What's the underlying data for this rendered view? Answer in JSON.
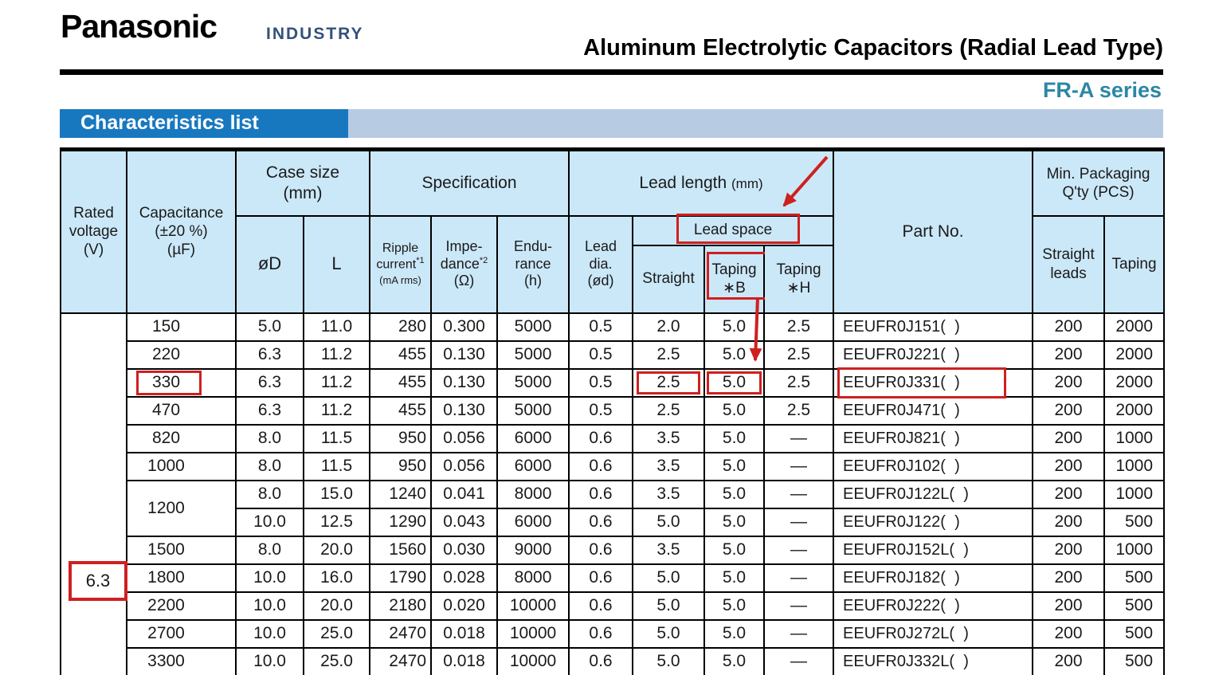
{
  "brand": {
    "logo": "Panasonic",
    "sub_brand": "INDUSTRY"
  },
  "title": "Aluminum Electrolytic Capacitors (Radial Lead Type)",
  "series": "FR-A series",
  "section_title": "Characteristics list",
  "colors": {
    "annotation_red": "#cf2020",
    "section_bar_blue": "#1878bf",
    "section_band_blue": "#b7cbe3",
    "table_header_blue": "#cbe8f8",
    "industry_navy": "#34517c",
    "series_teal": "#2c87a5"
  },
  "table": {
    "groups": {
      "rated_voltage": "Rated\nvoltage\n(V)",
      "capacitance": "Capacitance\n(±20 %)\n(µF)",
      "case_size": "Case size\n(mm)",
      "specification": "Specification",
      "lead_length_main": "Lead length ",
      "lead_length_unit": "(mm)",
      "part_no": "Part No.",
      "min_packaging": "Min. Packaging\nQ'ty (PCS)"
    },
    "sub_headers": {
      "dD": "øD",
      "L": "L",
      "ripple_l1": "Ripple\ncurrent",
      "ripple_sup": "*1",
      "ripple_l2": "\n(mA rms)",
      "impedance_l1": "Impe-\ndance",
      "impedance_sup": "*2",
      "impedance_l2": "\n(Ω)",
      "endurance": "Endu-\nrance\n(h)",
      "lead_dia": "Lead\ndia.\n(ød)",
      "lead_space": "Lead space",
      "straight": "Straight",
      "taping_B": "Taping\n∗B",
      "taping_H": "Taping\n∗H",
      "min_straight": "Straight\nleads",
      "min_taping": "Taping"
    },
    "rated_voltage": "6.3",
    "rows": [
      {
        "capacitance": "150",
        "case_dD": "5.0",
        "case_L": "11.0",
        "ripple": "280",
        "impedance": "0.300",
        "endurance": "5000",
        "lead_dia": "0.5",
        "straight": "2.0",
        "taping_B": "5.0",
        "taping_H": "2.5",
        "part_no": "EEUFR0J151(  )",
        "min_straight": "200",
        "min_taping": "2000"
      },
      {
        "capacitance": "220",
        "case_dD": "6.3",
        "case_L": "11.2",
        "ripple": "455",
        "impedance": "0.130",
        "endurance": "5000",
        "lead_dia": "0.5",
        "straight": "2.5",
        "taping_B": "5.0",
        "taping_H": "2.5",
        "part_no": "EEUFR0J221(  )",
        "min_straight": "200",
        "min_taping": "2000"
      },
      {
        "capacitance": "330",
        "case_dD": "6.3",
        "case_L": "11.2",
        "ripple": "455",
        "impedance": "0.130",
        "endurance": "5000",
        "lead_dia": "0.5",
        "straight": "2.5",
        "taping_B": "5.0",
        "taping_H": "2.5",
        "part_no": "EEUFR0J331(  )",
        "min_straight": "200",
        "min_taping": "2000",
        "highlight": [
          "capacitance",
          "straight",
          "taping_B",
          "part_no"
        ]
      },
      {
        "capacitance": "470",
        "case_dD": "6.3",
        "case_L": "11.2",
        "ripple": "455",
        "impedance": "0.130",
        "endurance": "5000",
        "lead_dia": "0.5",
        "straight": "2.5",
        "taping_B": "5.0",
        "taping_H": "2.5",
        "part_no": "EEUFR0J471(  )",
        "min_straight": "200",
        "min_taping": "2000"
      },
      {
        "capacitance": "820",
        "case_dD": "8.0",
        "case_L": "11.5",
        "ripple": "950",
        "impedance": "0.056",
        "endurance": "6000",
        "lead_dia": "0.6",
        "straight": "3.5",
        "taping_B": "5.0",
        "taping_H": "—",
        "part_no": "EEUFR0J821(  )",
        "min_straight": "200",
        "min_taping": "1000"
      },
      {
        "capacitance": "1000",
        "case_dD": "8.0",
        "case_L": "11.5",
        "ripple": "950",
        "impedance": "0.056",
        "endurance": "6000",
        "lead_dia": "0.6",
        "straight": "3.5",
        "taping_B": "5.0",
        "taping_H": "—",
        "part_no": "EEUFR0J102(  )",
        "min_straight": "200",
        "min_taping": "1000"
      },
      {
        "capacitance": "1200",
        "cap_rowspan": 2,
        "case_dD": "8.0",
        "case_L": "15.0",
        "ripple": "1240",
        "impedance": "0.041",
        "endurance": "8000",
        "lead_dia": "0.6",
        "straight": "3.5",
        "taping_B": "5.0",
        "taping_H": "—",
        "part_no": "EEUFR0J122L(  )",
        "min_straight": "200",
        "min_taping": "1000"
      },
      {
        "capacitance": null,
        "case_dD": "10.0",
        "case_L": "12.5",
        "ripple": "1290",
        "impedance": "0.043",
        "endurance": "6000",
        "lead_dia": "0.6",
        "straight": "5.0",
        "taping_B": "5.0",
        "taping_H": "—",
        "part_no": "EEUFR0J122(  )",
        "min_straight": "200",
        "min_taping": "500"
      },
      {
        "capacitance": "1500",
        "case_dD": "8.0",
        "case_L": "20.0",
        "ripple": "1560",
        "impedance": "0.030",
        "endurance": "9000",
        "lead_dia": "0.6",
        "straight": "3.5",
        "taping_B": "5.0",
        "taping_H": "—",
        "part_no": "EEUFR0J152L(  )",
        "min_straight": "200",
        "min_taping": "1000"
      },
      {
        "capacitance": "1800",
        "case_dD": "10.0",
        "case_L": "16.0",
        "ripple": "1790",
        "impedance": "0.028",
        "endurance": "8000",
        "lead_dia": "0.6",
        "straight": "5.0",
        "taping_B": "5.0",
        "taping_H": "—",
        "part_no": "EEUFR0J182(  )",
        "min_straight": "200",
        "min_taping": "500"
      },
      {
        "capacitance": "2200",
        "case_dD": "10.0",
        "case_L": "20.0",
        "ripple": "2180",
        "impedance": "0.020",
        "endurance": "10000",
        "lead_dia": "0.6",
        "straight": "5.0",
        "taping_B": "5.0",
        "taping_H": "—",
        "part_no": "EEUFR0J222(  )",
        "min_straight": "200",
        "min_taping": "500"
      },
      {
        "capacitance": "2700",
        "case_dD": "10.0",
        "case_L": "25.0",
        "ripple": "2470",
        "impedance": "0.018",
        "endurance": "10000",
        "lead_dia": "0.6",
        "straight": "5.0",
        "taping_B": "5.0",
        "taping_H": "—",
        "part_no": "EEUFR0J272L(  )",
        "min_straight": "200",
        "min_taping": "500"
      },
      {
        "capacitance": "3300",
        "case_dD": "10.0",
        "case_L": "25.0",
        "ripple": "2470",
        "impedance": "0.018",
        "endurance": "10000",
        "lead_dia": "0.6",
        "straight": "5.0",
        "taping_B": "5.0",
        "taping_H": "—",
        "part_no": "EEUFR0J332L(  )",
        "min_straight": "200",
        "min_taping": "500"
      }
    ],
    "annotations": {
      "highlight_boxes": [
        "Lead space header",
        "Taping ∗B header",
        "Rated voltage 6.3",
        "Capacitance 330",
        "Straight 2.5",
        "Taping ∗B 5.0",
        "Part No. EEUFR0J331"
      ],
      "arrows": [
        "to Lead space header",
        "from Taping ∗B header to 5.0 value of 330 row"
      ]
    }
  }
}
